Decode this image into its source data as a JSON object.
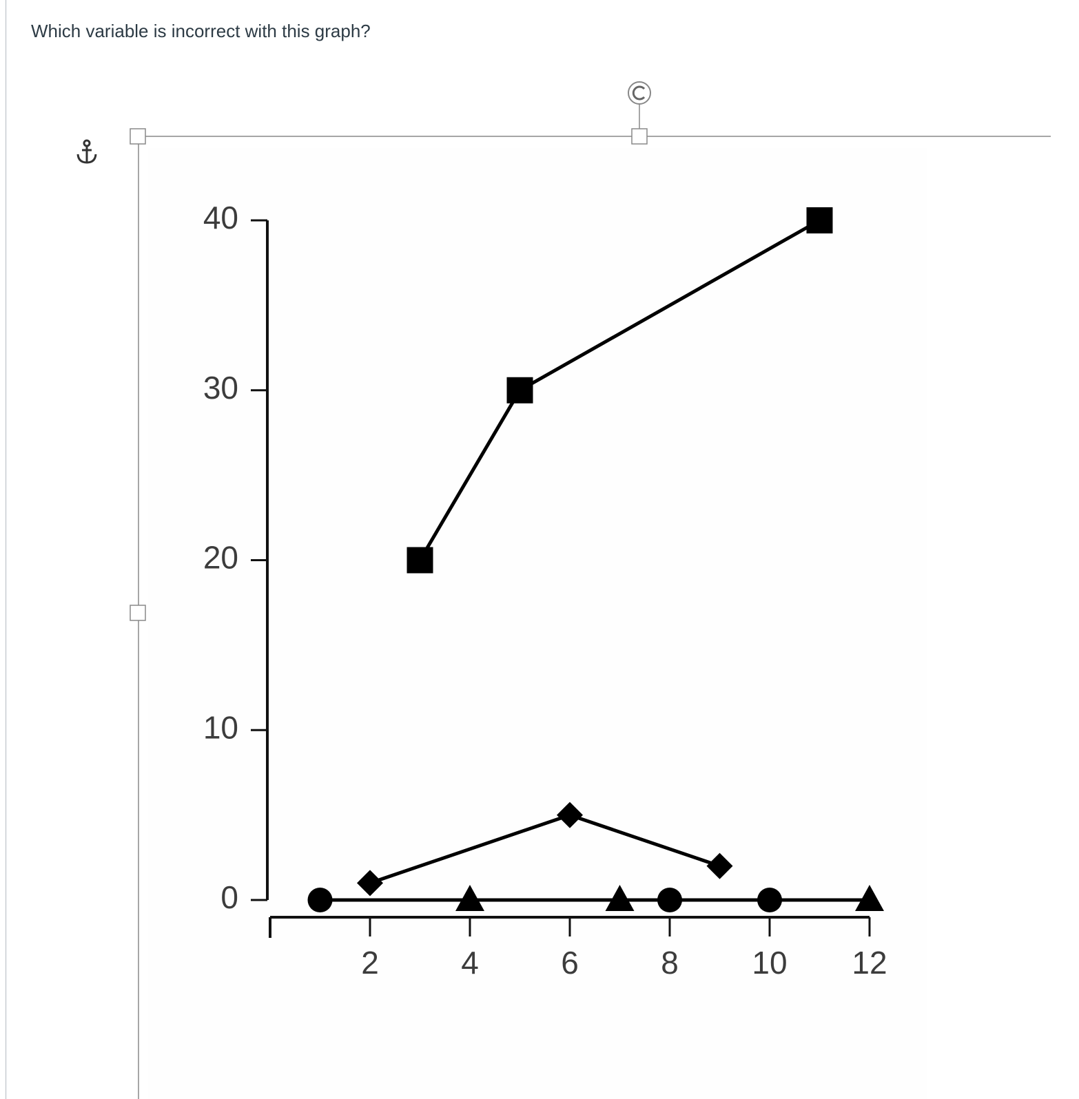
{
  "question": "Which variable is incorrect with this graph?",
  "chart_data": {
    "type": "line",
    "xlim": [
      0,
      12
    ],
    "xticks": [
      2,
      4,
      6,
      8,
      10,
      12
    ],
    "ylim": [
      0,
      40
    ],
    "yticks": [
      0,
      10,
      20,
      30,
      40
    ],
    "series": [
      {
        "marker": "square",
        "color": "#000000",
        "x": [
          3,
          5,
          11
        ],
        "values": [
          20,
          30,
          40
        ]
      },
      {
        "marker": "diamond",
        "color": "#000000",
        "x": [
          2,
          6,
          9
        ],
        "values": [
          1,
          5,
          2
        ]
      },
      {
        "marker": "circle",
        "color": "#000000",
        "x": [
          1,
          8,
          10
        ],
        "values": [
          0,
          0,
          0
        ]
      },
      {
        "marker": "triangle",
        "color": "#000000",
        "x": [
          4,
          7,
          12
        ],
        "values": [
          0,
          0,
          0
        ]
      }
    ]
  }
}
